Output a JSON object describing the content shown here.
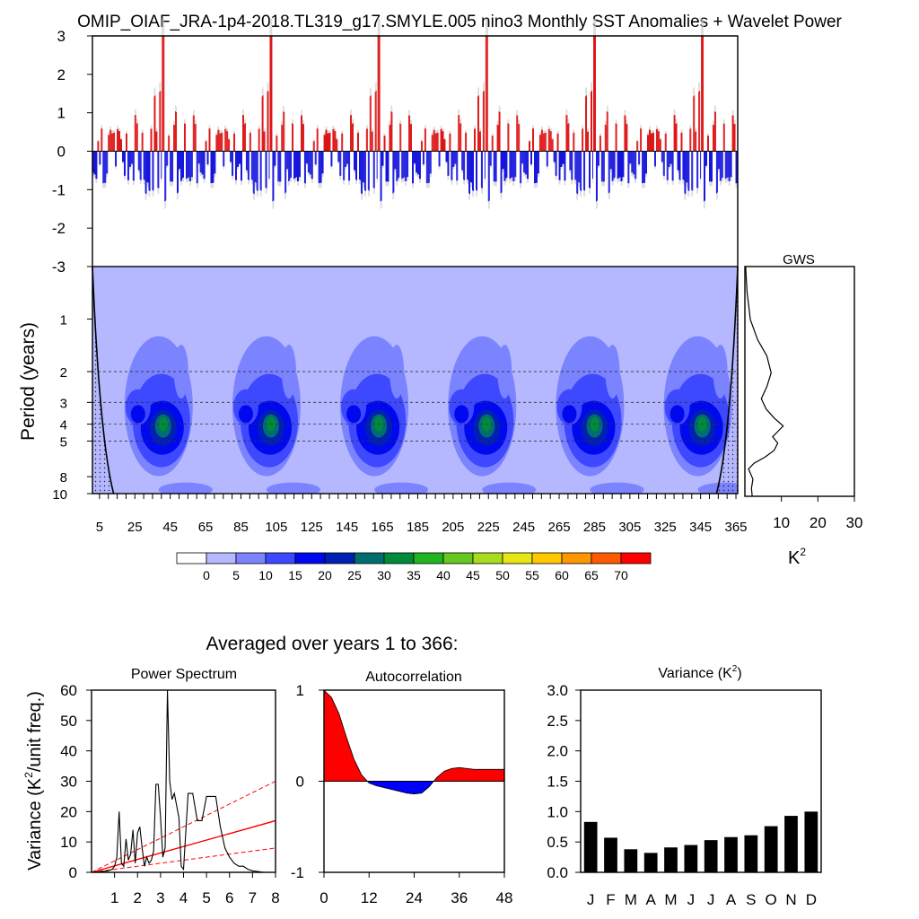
{
  "title": "OMIP_OIAF_JRA-1p4-2018.TL319_g17.SMYLE.005 nino3 Monthly SST Anomalies + Wavelet Power",
  "chart_data": [
    {
      "type": "bar",
      "name": "sst_anomaly_timeseries",
      "ylim": [
        -3,
        3
      ],
      "yticks": [
        3,
        2,
        1,
        0,
        -1,
        -2,
        -3
      ],
      "xlim": [
        1,
        366
      ],
      "pos_color": "#dd0000",
      "neg_color": "#0000dd",
      "note_values": "monthly values ~4392; peaks repeat with ~61-year cycle",
      "burst_peaks_years": [
        41,
        102,
        163,
        224,
        285,
        346
      ],
      "max_anomaly": 3.0,
      "min_anomaly": -1.8
    },
    {
      "type": "heatmap",
      "name": "wavelet_power",
      "ylabel": "Period (years)",
      "yticks": [
        1,
        2,
        3,
        4,
        5,
        8,
        10
      ],
      "ylim_years": [
        0.5,
        10
      ],
      "xticks": [
        5,
        25,
        45,
        65,
        85,
        105,
        125,
        145,
        165,
        185,
        205,
        225,
        245,
        265,
        285,
        305,
        325,
        345,
        365
      ],
      "reference_periods": [
        2,
        3,
        4,
        5
      ],
      "hotspot_period_years": 4,
      "hotspot_years": [
        41,
        102,
        163,
        224,
        285,
        346
      ]
    },
    {
      "type": "line",
      "name": "global_wavelet_spectrum",
      "title": "GWS",
      "xlabel": "K",
      "xlabel_sup": "2",
      "xticks": [
        10,
        20,
        30
      ],
      "xlim": [
        0,
        30
      ],
      "periods": [
        0.5,
        0.7,
        1,
        1.3,
        1.6,
        2,
        2.4,
        2.8,
        3.2,
        3.6,
        4,
        4.3,
        4.6,
        5,
        5.5,
        6,
        6.5,
        7,
        8,
        9,
        10
      ],
      "power": [
        0.2,
        0.6,
        1.5,
        3.5,
        6,
        7.2,
        6,
        4.5,
        5.8,
        8,
        10.5,
        9,
        7.6,
        9,
        8,
        5.5,
        2.5,
        1,
        2.2,
        1.8,
        2
      ]
    },
    {
      "type": "legend",
      "name": "colorbar",
      "levels": [
        "0",
        "5",
        "10",
        "15",
        "20",
        "25",
        "30",
        "35",
        "40",
        "45",
        "50",
        "55",
        "60",
        "65",
        "70"
      ],
      "colors": [
        "#ffffff",
        "#b5b8ff",
        "#7b83ff",
        "#3d48ff",
        "#0008ee",
        "#0020b4",
        "#006e6e",
        "#008a3c",
        "#20b420",
        "#66c820",
        "#a8dc1e",
        "#e6e614",
        "#ffc800",
        "#ff9600",
        "#ff5a00",
        "#ff0000"
      ]
    },
    {
      "type": "line",
      "name": "power_spectrum",
      "title": "Power Spectrum",
      "ylabel": "Variance (K",
      "ylabel_sup": "2",
      "ylabel_tail": "/unit freq.)",
      "ylim": [
        0,
        60
      ],
      "xlim": [
        0,
        8
      ],
      "yticks": [
        0,
        10,
        20,
        30,
        40,
        50,
        60
      ],
      "xticks": [
        1,
        2,
        3,
        4,
        5,
        6,
        7,
        8
      ],
      "x": [
        0.1,
        0.4,
        0.7,
        0.9,
        1.0,
        1.1,
        1.2,
        1.3,
        1.4,
        1.5,
        1.6,
        1.7,
        1.8,
        1.9,
        2.0,
        2.1,
        2.2,
        2.3,
        2.4,
        2.5,
        2.6,
        2.7,
        2.8,
        2.9,
        3.0,
        3.1,
        3.2,
        3.3,
        3.4,
        3.5,
        3.6,
        3.7,
        3.8,
        3.9,
        4.0,
        4.2,
        4.4,
        4.6,
        4.8,
        5.0,
        5.2,
        5.4,
        5.6,
        5.8,
        6.0,
        6.2,
        6.4,
        6.6,
        6.8,
        7.0,
        7.5,
        8.0
      ],
      "y": [
        0,
        0.2,
        0.5,
        1,
        2,
        5,
        20,
        3,
        2,
        11,
        4,
        6,
        14,
        3,
        13,
        15,
        8,
        2,
        5,
        3,
        4,
        7,
        29,
        29,
        18,
        5,
        8,
        60,
        30,
        24,
        26,
        22,
        18,
        2,
        1,
        26,
        26,
        17,
        17,
        25,
        25,
        25,
        15,
        8,
        5,
        3,
        2,
        2,
        1,
        0.5,
        0,
        0
      ],
      "red_noise": {
        "x": [
          0,
          8
        ],
        "y": [
          0,
          17
        ]
      },
      "ci_upper": {
        "x": [
          0,
          8
        ],
        "y": [
          0,
          30
        ]
      },
      "ci_lower": {
        "x": [
          0,
          8
        ],
        "y": [
          0,
          8
        ]
      }
    },
    {
      "type": "area",
      "name": "autocorrelation",
      "title": "Autocorrelation",
      "ylim": [
        -1,
        1
      ],
      "xlim": [
        0,
        48
      ],
      "yticks": [
        -1,
        0,
        1
      ],
      "xticks": [
        0,
        12,
        24,
        36,
        48
      ],
      "x": [
        0,
        2,
        4,
        6,
        8,
        10,
        12,
        14,
        16,
        18,
        20,
        22,
        24,
        26,
        28,
        30,
        32,
        34,
        36,
        38,
        40,
        42,
        44,
        46,
        48
      ],
      "y": [
        1.0,
        0.92,
        0.74,
        0.48,
        0.24,
        0.07,
        -0.02,
        -0.05,
        -0.07,
        -0.09,
        -0.11,
        -0.13,
        -0.14,
        -0.13,
        -0.06,
        0.04,
        0.11,
        0.14,
        0.15,
        0.14,
        0.13,
        0.13,
        0.13,
        0.13,
        0.13
      ],
      "pos_color": "#ff0000",
      "neg_color": "#0000ff"
    },
    {
      "type": "bar",
      "name": "monthly_variance",
      "title": "Variance (K",
      "title_sup": "2",
      "title_tail": ")",
      "ylim": [
        0,
        3.0
      ],
      "yticks": [
        "0.0",
        "0.5",
        "1.0",
        "1.5",
        "2.0",
        "2.5",
        "3.0"
      ],
      "categories": [
        "J",
        "F",
        "M",
        "A",
        "M",
        "J",
        "J",
        "A",
        "S",
        "O",
        "N",
        "D"
      ],
      "values": [
        0.83,
        0.57,
        0.38,
        0.32,
        0.41,
        0.45,
        0.53,
        0.58,
        0.61,
        0.76,
        0.93,
        1.0
      ]
    }
  ],
  "averaged_label": "Averaged over years 1 to 366:"
}
